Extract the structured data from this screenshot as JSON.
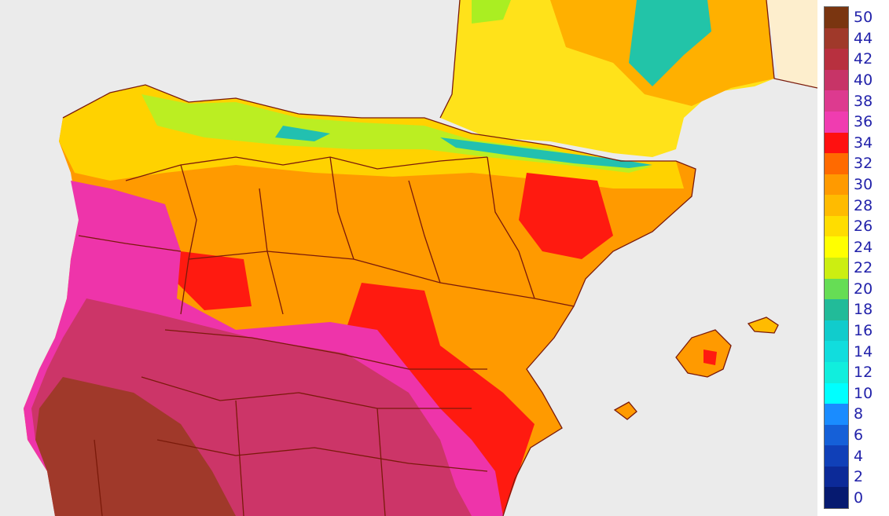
{
  "map": {
    "region": "Iberian Peninsula",
    "colors": {
      "sea": "#ebebeb",
      "france_outside": "#fdeecd",
      "border": "#7a1a0a"
    }
  },
  "legend": {
    "labels": [
      "50",
      "44",
      "42",
      "40",
      "38",
      "36",
      "34",
      "32",
      "30",
      "28",
      "26",
      "24",
      "22",
      "20",
      "18",
      "16",
      "14",
      "12",
      "10",
      "8",
      "6",
      "4",
      "2",
      "0"
    ],
    "colors": [
      "#7a3510",
      "#a0392a",
      "#b8303f",
      "#c73467",
      "#dd3a8f",
      "#f03cb0",
      "#ff1010",
      "#ff6a00",
      "#ff9a00",
      "#ffbb00",
      "#ffdd00",
      "#ffff00",
      "#ccee11",
      "#66dd55",
      "#22bb99",
      "#11cccc",
      "#11dddd",
      "#11eedd",
      "#00ffff",
      "#1a8cff",
      "#1560d8",
      "#1040b8",
      "#0c2a98",
      "#061a70"
    ]
  }
}
